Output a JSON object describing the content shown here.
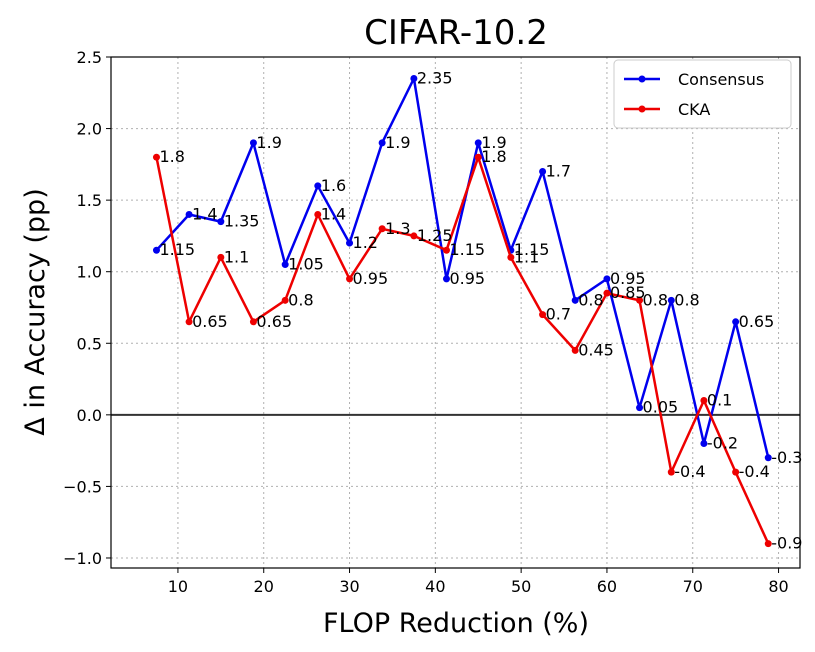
{
  "chart_data": {
    "type": "line",
    "title": "CIFAR-10.2",
    "xlabel": "FLOP Reduction (%)",
    "ylabel": "Δ in Accuracy (pp)",
    "xlim": [
      2.2,
      82.5
    ],
    "ylim": [
      -1.07,
      2.5
    ],
    "xticks": [
      10,
      20,
      30,
      40,
      50,
      60,
      70,
      80
    ],
    "yticks": [
      -1.0,
      -0.5,
      0.0,
      0.5,
      1.0,
      1.5,
      2.0,
      2.5
    ],
    "ytick_labels": [
      "−1.0",
      "−0.5",
      "0.0",
      "0.5",
      "1.0",
      "1.5",
      "2.0",
      "2.5"
    ],
    "grid": true,
    "zero_line": 0,
    "legend_position": "top-right",
    "series": [
      {
        "name": "Consensus",
        "color": "#0000ee",
        "x": [
          7.5,
          11.3,
          15.0,
          18.8,
          22.5,
          26.3,
          30.0,
          33.8,
          37.5,
          41.3,
          45.0,
          48.8,
          52.5,
          56.3,
          60.0,
          63.8,
          67.5,
          71.3,
          75.0,
          78.8
        ],
        "values": [
          1.15,
          1.4,
          1.35,
          1.9,
          1.05,
          1.6,
          1.2,
          1.9,
          2.35,
          0.95,
          1.9,
          1.15,
          1.7,
          0.8,
          0.95,
          0.05,
          0.8,
          -0.2,
          0.65,
          -0.3
        ],
        "labels": [
          "1.15",
          "1.4",
          "1.35",
          "1.9",
          "1.05",
          "1.6",
          "1.2",
          "1.9",
          "2.35",
          "0.95",
          "1.9",
          "1.15",
          "1.7",
          "0.8",
          "0.95",
          "0.05",
          "0.8",
          "-0.2",
          "0.65",
          "-0.3"
        ]
      },
      {
        "name": "CKA",
        "color": "#ee0000",
        "x": [
          7.5,
          11.3,
          15.0,
          18.8,
          22.5,
          26.3,
          30.0,
          33.8,
          37.5,
          41.3,
          45.0,
          48.8,
          52.5,
          56.3,
          60.0,
          63.8,
          67.5,
          71.3,
          75.0,
          78.8
        ],
        "values": [
          1.8,
          0.65,
          1.1,
          0.65,
          0.8,
          1.4,
          0.95,
          1.3,
          1.25,
          1.15,
          1.8,
          1.1,
          0.7,
          0.45,
          0.85,
          0.8,
          -0.4,
          0.1,
          -0.4,
          -0.9
        ],
        "labels": [
          "1.8",
          "0.65",
          "1.1",
          "0.65",
          "0.8",
          "1.4",
          "0.95",
          "1.3",
          "1.25",
          "1.15",
          "1.8",
          "1.1",
          "0.7",
          "0.45",
          "0.85",
          "0.8",
          "-0.4",
          "0.1",
          "-0.4",
          "-0.9"
        ]
      }
    ]
  }
}
